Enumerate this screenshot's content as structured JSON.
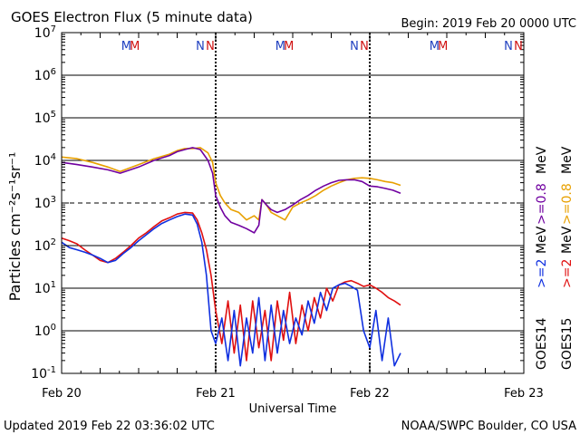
{
  "chart_data": {
    "type": "line",
    "title": "GOES Electron Flux (5 minute data)",
    "begin": "Begin: 2019 Feb 20 0000 UTC",
    "xlabel": "Universal Time",
    "ylabel": "Particles cm⁻²s⁻¹sr⁻¹",
    "updated": "Updated 2019 Feb 22 03:36:02 UTC",
    "credit": "NOAA/SWPC Boulder, CO USA",
    "xlim": [
      0,
      3
    ],
    "ylim_log10": [
      -1,
      7
    ],
    "x_tick_labels": [
      {
        "x": 0,
        "label": "Feb 20"
      },
      {
        "x": 1,
        "label": "Feb 21"
      },
      {
        "x": 2,
        "label": "Feb 22"
      },
      {
        "x": 3,
        "label": "Feb 23"
      }
    ],
    "y_ticks": [
      {
        "exp": -1,
        "base": "10",
        "sup": "-1"
      },
      {
        "exp": 0,
        "base": "10",
        "sup": "0"
      },
      {
        "exp": 1,
        "base": "10",
        "sup": "1"
      },
      {
        "exp": 2,
        "base": "10",
        "sup": "2"
      },
      {
        "exp": 3,
        "base": "10",
        "sup": "3"
      },
      {
        "exp": 4,
        "base": "10",
        "sup": "4"
      },
      {
        "exp": 5,
        "base": "10",
        "sup": "5"
      },
      {
        "exp": 6,
        "base": "10",
        "sup": "6"
      },
      {
        "exp": 7,
        "base": "10",
        "sup": "7"
      }
    ],
    "threshold_log10": 3,
    "midnight_markers": [
      1,
      2
    ],
    "noon_markers": [
      {
        "x": 0.42,
        "label": "M",
        "color": "#2040c0"
      },
      {
        "x": 0.475,
        "label": "M",
        "color": "#d01010"
      },
      {
        "x": 0.9,
        "label": "N",
        "color": "#2040c0"
      },
      {
        "x": 0.965,
        "label": "N",
        "color": "#d01010"
      },
      {
        "x": 1.42,
        "label": "M",
        "color": "#2040c0"
      },
      {
        "x": 1.475,
        "label": "M",
        "color": "#d01010"
      },
      {
        "x": 1.9,
        "label": "N",
        "color": "#2040c0"
      },
      {
        "x": 1.965,
        "label": "N",
        "color": "#d01010"
      },
      {
        "x": 2.42,
        "label": "M",
        "color": "#2040c0"
      },
      {
        "x": 2.475,
        "label": "M",
        "color": "#d01010"
      },
      {
        "x": 2.9,
        "label": "N",
        "color": "#2040c0"
      },
      {
        "x": 2.965,
        "label": "N",
        "color": "#d01010"
      }
    ],
    "legend": {
      "mev08": "MeV",
      "mev2": "MeV",
      "g14_08": ">=0.8",
      "g15_08": ">=0.8",
      "g14_2": ">=2",
      "g15_2": ">=2",
      "goes14": "GOES14",
      "goes15": "GOES15"
    },
    "series": [
      {
        "name": "GOES15 >=0.8 MeV",
        "color": "#e8a000",
        "x": [
          0,
          0.1,
          0.2,
          0.3,
          0.38,
          0.5,
          0.6,
          0.7,
          0.75,
          0.8,
          0.85,
          0.9,
          0.95,
          0.98,
          1.0,
          1.03,
          1.06,
          1.1,
          1.15,
          1.2,
          1.25,
          1.28,
          1.3,
          1.33,
          1.36,
          1.4,
          1.45,
          1.5,
          1.55,
          1.6,
          1.65,
          1.7,
          1.75,
          1.8,
          1.85,
          1.9,
          1.95,
          2.0,
          2.05,
          2.1,
          2.15,
          2.2
        ],
        "y": [
          12000,
          11000,
          9000,
          7000,
          5500,
          8000,
          11000,
          14000,
          17000,
          19000,
          19000,
          20000,
          15000,
          9000,
          3000,
          1500,
          1000,
          700,
          600,
          400,
          500,
          400,
          1200,
          900,
          600,
          500,
          400,
          800,
          1000,
          1200,
          1500,
          2000,
          2500,
          3000,
          3500,
          3800,
          3900,
          3800,
          3500,
          3200,
          3000,
          2600
        ]
      },
      {
        "name": "GOES14 >=0.8 MeV",
        "color": "#7000a0",
        "x": [
          0,
          0.1,
          0.2,
          0.3,
          0.38,
          0.5,
          0.6,
          0.7,
          0.75,
          0.8,
          0.85,
          0.9,
          0.95,
          0.98,
          1.0,
          1.03,
          1.06,
          1.1,
          1.15,
          1.2,
          1.25,
          1.28,
          1.3,
          1.33,
          1.36,
          1.4,
          1.45,
          1.5,
          1.55,
          1.6,
          1.65,
          1.7,
          1.75,
          1.8,
          1.85,
          1.9,
          1.95,
          2.0,
          2.05,
          2.1,
          2.15,
          2.2
        ],
        "y": [
          9000,
          8000,
          7000,
          6000,
          5000,
          7000,
          10000,
          13000,
          16000,
          18000,
          20000,
          18000,
          10000,
          5000,
          1500,
          800,
          500,
          350,
          300,
          250,
          200,
          300,
          1200,
          900,
          700,
          600,
          700,
          900,
          1200,
          1500,
          2000,
          2500,
          3000,
          3400,
          3500,
          3500,
          3200,
          2500,
          2400,
          2200,
          2000,
          1700
        ]
      },
      {
        "name": "GOES15 >=2 MeV",
        "color": "#e01010",
        "x": [
          0,
          0.05,
          0.1,
          0.15,
          0.2,
          0.25,
          0.3,
          0.35,
          0.4,
          0.45,
          0.5,
          0.55,
          0.6,
          0.65,
          0.7,
          0.75,
          0.8,
          0.85,
          0.88,
          0.91,
          0.94,
          0.97,
          1.0,
          1.04,
          1.08,
          1.12,
          1.16,
          1.2,
          1.24,
          1.28,
          1.32,
          1.36,
          1.4,
          1.44,
          1.48,
          1.52,
          1.56,
          1.6,
          1.64,
          1.68,
          1.72,
          1.76,
          1.8,
          1.84,
          1.88,
          1.92,
          1.96,
          2.0,
          2.04,
          2.08,
          2.12,
          2.16,
          2.2
        ],
        "y": [
          150,
          130,
          110,
          80,
          60,
          45,
          40,
          50,
          70,
          100,
          150,
          200,
          280,
          380,
          450,
          550,
          600,
          580,
          400,
          200,
          80,
          20,
          3,
          0.5,
          5,
          0.3,
          4,
          0.2,
          5,
          0.4,
          3,
          0.2,
          5,
          0.6,
          8,
          0.5,
          4,
          1,
          6,
          2,
          10,
          5,
          12,
          14,
          15,
          13,
          11,
          12,
          10,
          8,
          6,
          5,
          4
        ]
      },
      {
        "name": "GOES14 >=2 MeV",
        "color": "#1030e0",
        "x": [
          0,
          0.05,
          0.1,
          0.15,
          0.2,
          0.25,
          0.3,
          0.35,
          0.4,
          0.45,
          0.5,
          0.55,
          0.6,
          0.65,
          0.7,
          0.75,
          0.8,
          0.85,
          0.88,
          0.91,
          0.94,
          0.97,
          1.0,
          1.04,
          1.08,
          1.12,
          1.16,
          1.2,
          1.24,
          1.28,
          1.32,
          1.36,
          1.4,
          1.44,
          1.48,
          1.52,
          1.56,
          1.6,
          1.64,
          1.68,
          1.72,
          1.76,
          1.8,
          1.84,
          1.88,
          1.92,
          1.96,
          2.0,
          2.04,
          2.08,
          2.12,
          2.16,
          2.2
        ],
        "y": [
          120,
          90,
          80,
          70,
          60,
          50,
          40,
          45,
          65,
          90,
          130,
          180,
          250,
          330,
          400,
          480,
          550,
          520,
          320,
          120,
          20,
          1,
          0.5,
          2,
          0.2,
          3,
          0.15,
          2,
          0.3,
          6,
          0.2,
          4,
          0.3,
          3,
          0.5,
          2,
          0.8,
          5,
          1.5,
          8,
          3,
          10,
          12,
          13,
          11,
          9,
          1,
          0.4,
          3,
          0.2,
          2,
          0.15,
          0.3
        ]
      }
    ]
  }
}
